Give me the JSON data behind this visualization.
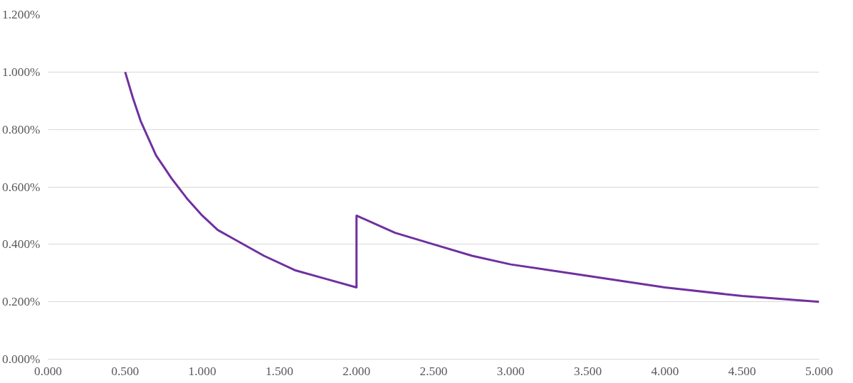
{
  "chart_data": {
    "type": "line",
    "grid": "y",
    "line_style": "solid",
    "marker": "none",
    "xlim": [
      0,
      5
    ],
    "ylim": [
      0,
      1.2
    ],
    "xticks": [
      {
        "value": 0,
        "label": "0.000"
      },
      {
        "value": 0.5,
        "label": "0.500"
      },
      {
        "value": 1,
        "label": "1.000"
      },
      {
        "value": 1.5,
        "label": "1.500"
      },
      {
        "value": 2,
        "label": "2.000"
      },
      {
        "value": 2.5,
        "label": "2.500"
      },
      {
        "value": 3,
        "label": "3.000"
      },
      {
        "value": 3.5,
        "label": "3.500"
      },
      {
        "value": 4,
        "label": "4.000"
      },
      {
        "value": 4.5,
        "label": "4.500"
      },
      {
        "value": 5,
        "label": "5.000"
      }
    ],
    "yticks": [
      {
        "value": 0,
        "label": "0.000%"
      },
      {
        "value": 0.2,
        "label": "0.200%"
      },
      {
        "value": 0.4,
        "label": "0.400%"
      },
      {
        "value": 0.6,
        "label": "0.600%"
      },
      {
        "value": 0.8,
        "label": "0.800%"
      },
      {
        "value": 1.0,
        "label": "1.000%"
      },
      {
        "value": 1.2,
        "label": "1.200%"
      }
    ],
    "series": [
      {
        "color": "#7030a0",
        "x": [
          0.5,
          0.55,
          0.6,
          0.65,
          0.7,
          0.75,
          0.8,
          0.9,
          1.0,
          1.1,
          1.2,
          1.4,
          1.6,
          1.8,
          2.0,
          2.0,
          2.25,
          2.5,
          2.75,
          3.0,
          3.5,
          4.0,
          4.5,
          5.0
        ],
        "values": [
          1.0,
          0.91,
          0.83,
          0.77,
          0.71,
          0.67,
          0.63,
          0.56,
          0.5,
          0.45,
          0.42,
          0.36,
          0.31,
          0.28,
          0.25,
          0.5,
          0.44,
          0.4,
          0.36,
          0.33,
          0.29,
          0.25,
          0.22,
          0.2
        ]
      }
    ]
  }
}
